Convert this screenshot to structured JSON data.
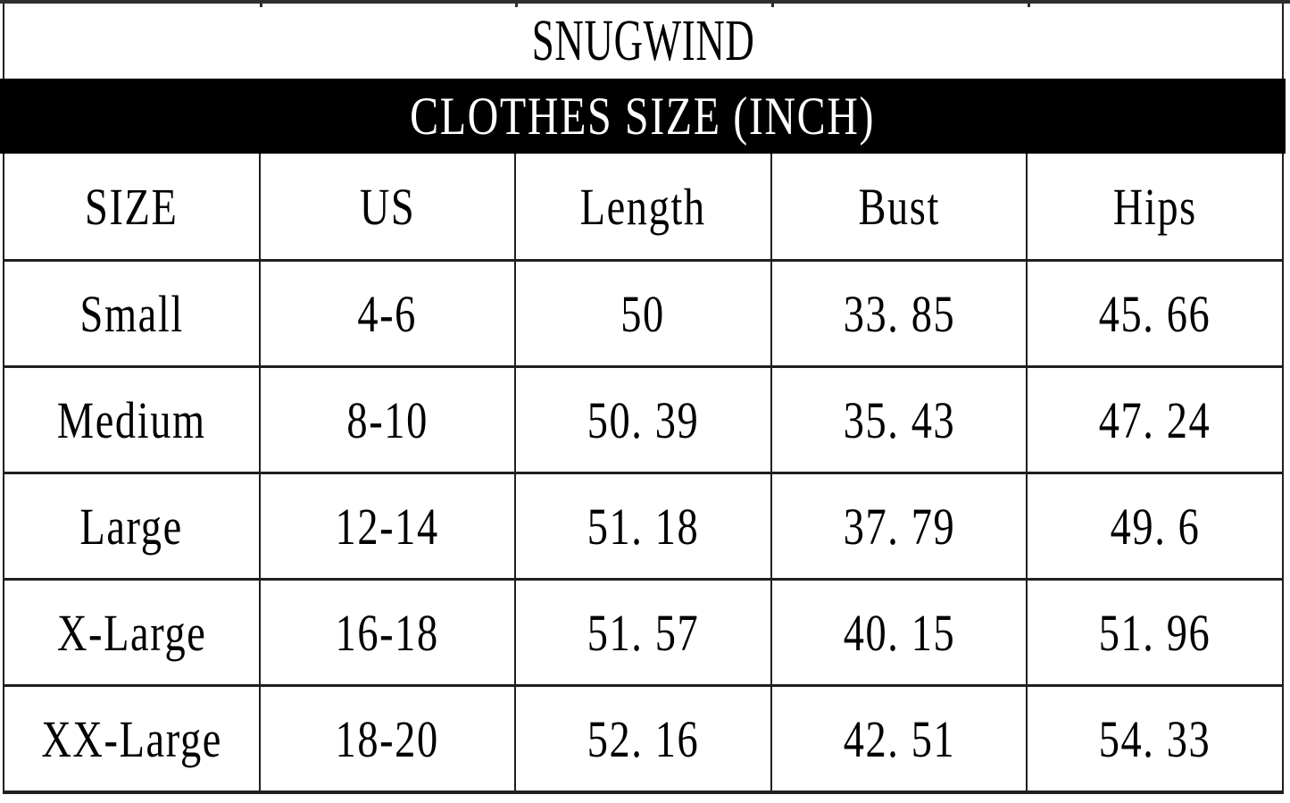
{
  "brand": {
    "name": "SNUGWIND"
  },
  "banner": {
    "title": "CLOTHES SIZE (INCH)"
  },
  "table": {
    "headers": [
      "SIZE",
      "US",
      "Length",
      "Bust",
      "Hips"
    ],
    "rows": [
      {
        "size": "Small",
        "us": "4-6",
        "length": "50",
        "bust": "33. 85",
        "hips": "45. 66"
      },
      {
        "size": "Medium",
        "us": "8-10",
        "length": "50. 39",
        "bust": "35. 43",
        "hips": "47. 24"
      },
      {
        "size": "Large",
        "us": "12-14",
        "length": "51. 18",
        "bust": "37. 79",
        "hips": "49. 6"
      },
      {
        "size": "X-Large",
        "us": "16-18",
        "length": "51. 57",
        "bust": "40. 15",
        "hips": "51. 96"
      },
      {
        "size": "XX-Large",
        "us": "18-20",
        "length": "52. 16",
        "bust": "42. 51",
        "hips": "54. 33"
      }
    ]
  },
  "colors": {
    "banner_bg": "#000000",
    "banner_text": "#ffffff",
    "border": "#1f1f1f",
    "text": "#000000",
    "background": "#ffffff"
  }
}
